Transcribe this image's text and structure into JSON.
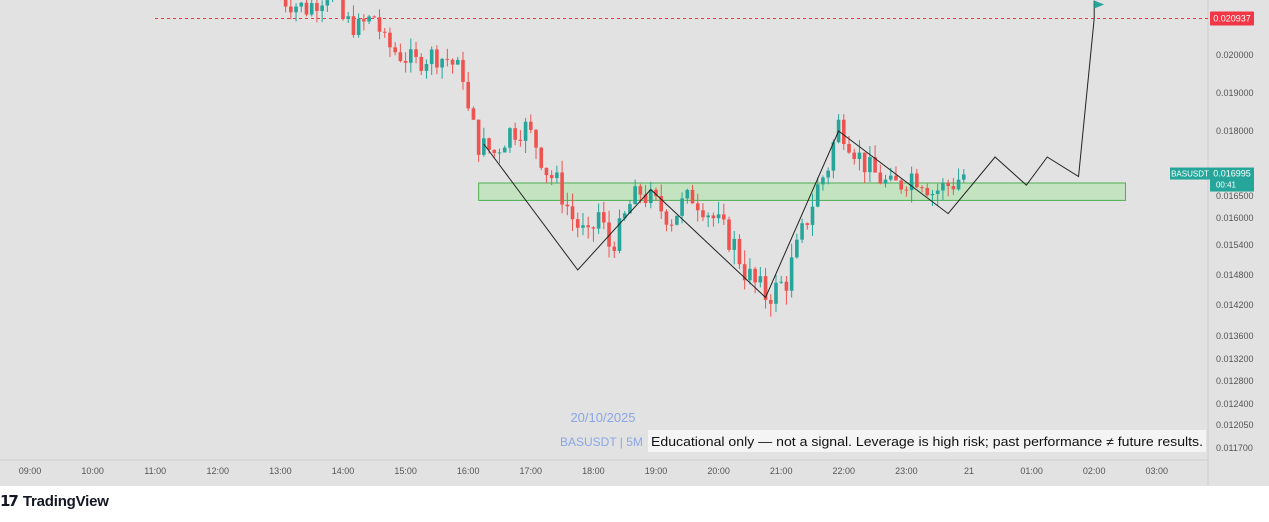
{
  "chart_data": {
    "type": "candlestick",
    "symbol": "BASUSDT",
    "interval": "5M",
    "date": "20/10/2025",
    "disclaimer": "Educational only — not a signal. Leverage is high risk; past performance ≠ future results.",
    "y_ticks": [
      "0.020000",
      "0.019000",
      "0.018000",
      "0.016500",
      "0.016000",
      "0.015400",
      "0.014800",
      "0.014200",
      "0.013600",
      "0.013200",
      "0.012800",
      "0.012400",
      "0.012050",
      "0.011700"
    ],
    "x_ticks": [
      "09:00",
      "10:00",
      "11:00",
      "12:00",
      "13:00",
      "14:00",
      "15:00",
      "16:00",
      "17:00",
      "18:00",
      "19:00",
      "20:00",
      "21:00",
      "22:00",
      "23:00",
      "21",
      "01:00",
      "02:00",
      "03:00"
    ],
    "target": {
      "label": "0.020937",
      "value": 0.020937
    },
    "last_price": {
      "symbol": "BASUSDT",
      "value": "0.016995",
      "countdown": "00:41"
    },
    "support_zone": {
      "low": 0.0164,
      "high": 0.0168,
      "from": "16:10",
      "to": "02:30"
    },
    "projection_path": [
      {
        "t": "16:15",
        "v": 0.0177
      },
      {
        "t": "17:45",
        "v": 0.0149
      },
      {
        "t": "18:55",
        "v": 0.01665
      },
      {
        "t": "20:45",
        "v": 0.01435
      },
      {
        "t": "21:55",
        "v": 0.018
      },
      {
        "t": "23:40",
        "v": 0.0161
      },
      {
        "t": "00:25",
        "v": 0.0174
      },
      {
        "t": "00:55",
        "v": 0.01675
      },
      {
        "t": "01:15",
        "v": 0.0174
      },
      {
        "t": "01:45",
        "v": 0.01695
      },
      {
        "t": "02:00",
        "v": 0.020937
      }
    ],
    "candles_close_path": [
      [
        "13:00",
        0.0215
      ],
      [
        "13:30",
        0.0212
      ],
      [
        "13:55",
        0.0217
      ],
      [
        "14:05",
        0.0209
      ],
      [
        "14:20",
        0.0207
      ],
      [
        "14:35",
        0.021
      ],
      [
        "14:45",
        0.0203
      ],
      [
        "15:00",
        0.02
      ],
      [
        "15:15",
        0.0198
      ],
      [
        "15:30",
        0.02
      ],
      [
        "15:45",
        0.0199
      ],
      [
        "16:00",
        0.0195
      ],
      [
        "16:05",
        0.0185
      ],
      [
        "16:15",
        0.0177
      ],
      [
        "16:30",
        0.0175
      ],
      [
        "16:45",
        0.018
      ],
      [
        "17:00",
        0.0181
      ],
      [
        "17:10",
        0.0177
      ],
      [
        "17:20",
        0.0171
      ],
      [
        "17:30",
        0.0168
      ],
      [
        "17:45",
        0.016
      ],
      [
        "18:00",
        0.0155
      ],
      [
        "18:10",
        0.0161
      ],
      [
        "18:20",
        0.0154
      ],
      [
        "18:30",
        0.0157
      ],
      [
        "18:40",
        0.0163
      ],
      [
        "18:50",
        0.0166
      ],
      [
        "19:00",
        0.0164
      ],
      [
        "19:10",
        0.0162
      ],
      [
        "19:20",
        0.016
      ],
      [
        "19:30",
        0.0163
      ],
      [
        "19:40",
        0.0165
      ],
      [
        "19:50",
        0.0163
      ],
      [
        "20:00",
        0.016
      ],
      [
        "20:10",
        0.0157
      ],
      [
        "20:20",
        0.0154
      ],
      [
        "20:30",
        0.0149
      ],
      [
        "20:40",
        0.0146
      ],
      [
        "20:50",
        0.0144
      ],
      [
        "21:00",
        0.0145
      ],
      [
        "21:10",
        0.0147
      ],
      [
        "21:20",
        0.0153
      ],
      [
        "21:30",
        0.016
      ],
      [
        "21:40",
        0.0167
      ],
      [
        "21:50",
        0.0172
      ],
      [
        "22:00",
        0.0182
      ],
      [
        "22:10",
        0.0178
      ],
      [
        "22:20",
        0.0174
      ],
      [
        "22:30",
        0.0171
      ],
      [
        "22:40",
        0.0169
      ],
      [
        "22:50",
        0.0167
      ],
      [
        "23:00",
        0.0168
      ],
      [
        "23:10",
        0.017
      ],
      [
        "23:20",
        0.0169
      ],
      [
        "23:30",
        0.0166
      ],
      [
        "23:40",
        0.0167
      ],
      [
        "23:50",
        0.0168
      ],
      [
        "00:00",
        0.017
      ]
    ],
    "colors": {
      "up": "#26a69a",
      "down": "#ef5350",
      "zone_fill": "#b9e3b6",
      "zone_stroke": "#4caf50",
      "target_line": "#f23645",
      "price_tag": "#26a69a",
      "plot_bg": "#e2e2e2"
    }
  },
  "footer": {
    "logo": "17",
    "brand": "TradingView"
  }
}
